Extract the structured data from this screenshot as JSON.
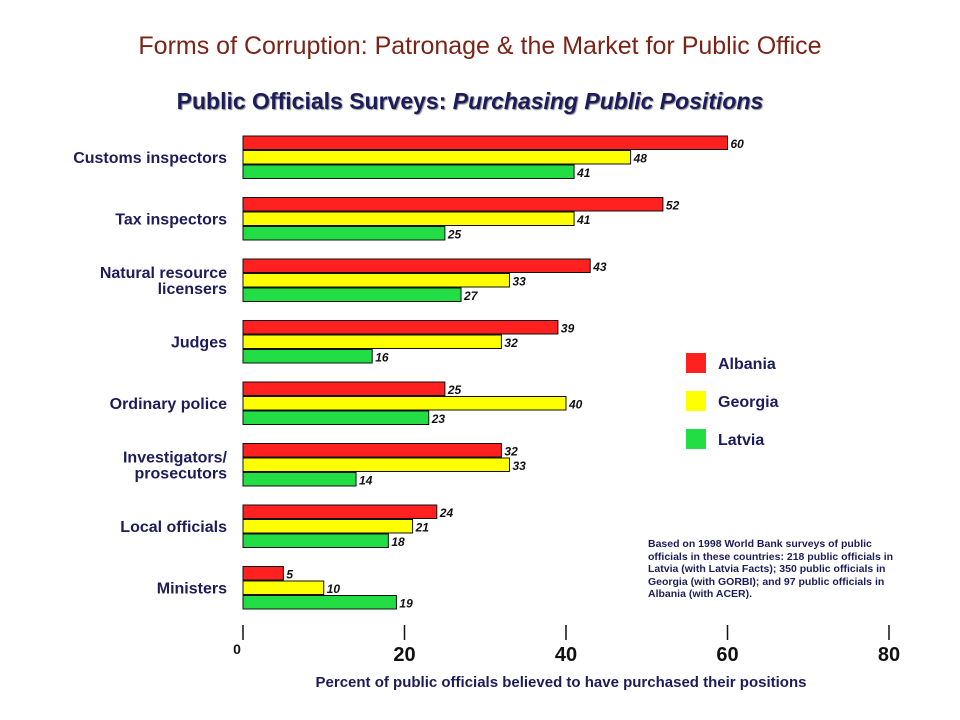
{
  "header": {
    "title": "Forms of Corruption: Patronage & the Market for Public Office",
    "subtitle_plain": "Public Officials Surveys: ",
    "subtitle_italic": "Purchasing Public Positions"
  },
  "chart_data": {
    "type": "bar",
    "orientation": "horizontal",
    "categories": [
      [
        "Customs inspectors"
      ],
      [
        "Tax inspectors"
      ],
      [
        "Natural resource",
        "licensers"
      ],
      [
        "Judges"
      ],
      [
        "Ordinary police"
      ],
      [
        "Investigators/",
        "prosecutors"
      ],
      [
        "Local officials"
      ],
      [
        "Ministers"
      ]
    ],
    "series": [
      {
        "name": "Albania",
        "color": "#ff2020",
        "values": [
          60,
          52,
          43,
          39,
          25,
          32,
          24,
          5
        ]
      },
      {
        "name": "Georgia",
        "color": "#ffff00",
        "values": [
          48,
          41,
          33,
          32,
          40,
          33,
          21,
          10
        ]
      },
      {
        "name": "Latvia",
        "color": "#22dd44",
        "values": [
          41,
          25,
          27,
          16,
          23,
          14,
          18,
          19
        ]
      }
    ],
    "xlabel": "Percent of public officials believed to have purchased their positions",
    "xlim": [
      0,
      80
    ],
    "xticks": [
      0,
      20,
      40,
      60,
      80
    ],
    "legend_position": "right",
    "grid": false
  },
  "note": "Based on 1998 World Bank surveys of public officials in these countries: 218 public officials in Latvia (with Latvia Facts); 350 public officials in Georgia (with GORBI); and 97 public officials in Albania (with ACER)."
}
